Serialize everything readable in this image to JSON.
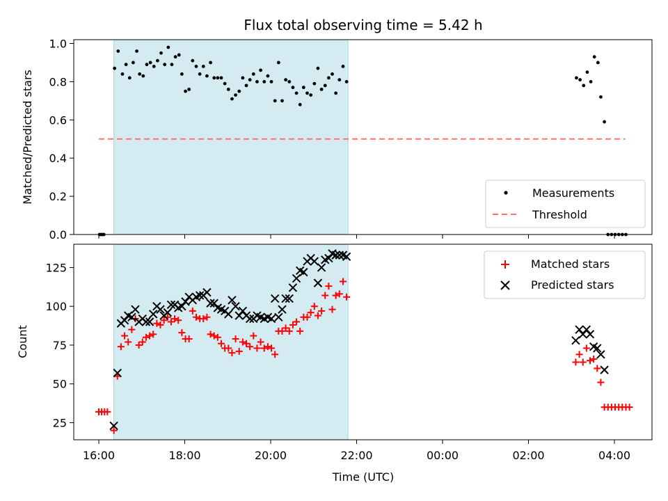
{
  "chart_data": [
    {
      "type": "scatter",
      "title": "Flux total observing time = 5.42 h",
      "ylabel": "Matched/Predicted stars",
      "ylim": [
        0,
        1.02
      ],
      "yticks": [
        "0.0",
        "0.2",
        "0.4",
        "0.6",
        "0.8",
        "1.0"
      ],
      "ytick_values": [
        0,
        0.2,
        0.4,
        0.6,
        0.8,
        1.0
      ],
      "grid": false,
      "legend_position": "bottom-right",
      "shaded_interval": {
        "start": "16:21",
        "end": "21:48",
        "color": "#d4ebf2"
      },
      "threshold": {
        "name": "Threshold",
        "value": 0.5,
        "x_start": "16:00",
        "x_end": "04:15",
        "color": "#ff7070",
        "style": "dashed"
      },
      "series": [
        {
          "name": "Measurements",
          "color": "#000000",
          "marker": "dot",
          "x": [
            "16:01",
            "16:03",
            "16:05",
            "16:07",
            "16:22",
            "16:27",
            "16:33",
            "16:38",
            "16:43",
            "16:48",
            "16:53",
            "16:57",
            "17:02",
            "17:07",
            "17:12",
            "17:17",
            "17:22",
            "17:27",
            "17:32",
            "17:37",
            "17:42",
            "17:47",
            "17:52",
            "17:56",
            "18:01",
            "18:06",
            "18:11",
            "18:16",
            "18:21",
            "18:26",
            "18:31",
            "18:36",
            "18:41",
            "18:46",
            "18:51",
            "18:56",
            "19:01",
            "19:06",
            "19:11",
            "19:16",
            "19:21",
            "19:26",
            "19:31",
            "19:36",
            "19:41",
            "19:46",
            "19:51",
            "19:56",
            "20:01",
            "20:06",
            "20:11",
            "20:16",
            "20:21",
            "20:26",
            "20:31",
            "20:36",
            "20:41",
            "20:46",
            "20:51",
            "20:56",
            "21:01",
            "21:06",
            "21:11",
            "21:16",
            "21:21",
            "21:26",
            "21:31",
            "21:36",
            "21:41",
            "21:46",
            "03:07",
            "03:12",
            "03:17",
            "03:22",
            "03:27",
            "03:32",
            "03:37",
            "03:41",
            "03:46",
            "03:51",
            "03:56",
            "04:01",
            "04:06",
            "04:11",
            "04:16"
          ],
          "y": [
            0,
            0,
            0,
            0,
            0.87,
            0.96,
            0.84,
            0.89,
            0.82,
            0.9,
            0.96,
            0.84,
            0.83,
            0.89,
            0.9,
            0.88,
            0.91,
            0.95,
            0.89,
            0.98,
            0.89,
            0.93,
            0.94,
            0.84,
            0.75,
            0.76,
            0.91,
            0.88,
            0.84,
            0.88,
            0.83,
            0.9,
            0.82,
            0.82,
            0.82,
            0.79,
            0.76,
            0.71,
            0.73,
            0.75,
            0.82,
            0.78,
            0.81,
            0.84,
            0.8,
            0.86,
            0.8,
            0.83,
            0.8,
            0.7,
            0.9,
            0.7,
            0.81,
            0.8,
            0.77,
            0.74,
            0.68,
            0.77,
            0.74,
            0.73,
            0.79,
            0.87,
            0.76,
            0.78,
            0.82,
            0.84,
            0.74,
            0.81,
            0.88,
            0.8,
            0.82,
            0.81,
            0.78,
            0.85,
            0.8,
            0.93,
            0.9,
            0.72,
            0.59,
            0,
            0,
            0,
            0,
            0,
            0
          ]
        }
      ]
    },
    {
      "type": "scatter",
      "xlabel": "Time (UTC)",
      "ylabel": "Count",
      "ylim": [
        14,
        140
      ],
      "yticks": [
        "25",
        "50",
        "75",
        "100",
        "125"
      ],
      "ytick_values": [
        25,
        50,
        75,
        100,
        125
      ],
      "x_ticks": [
        "16:00",
        "18:00",
        "20:00",
        "22:00",
        "00:00",
        "02:00",
        "04:00"
      ],
      "grid": false,
      "legend_position": "top-right",
      "shaded_interval": {
        "start": "16:21",
        "end": "21:48",
        "color": "#d4ebf2"
      },
      "series": [
        {
          "name": "Matched stars",
          "color": "#ff0000",
          "marker": "plus",
          "x": [
            "16:00",
            "16:04",
            "16:08",
            "16:12",
            "16:21",
            "16:26",
            "16:31",
            "16:36",
            "16:41",
            "16:46",
            "16:51",
            "16:56",
            "17:01",
            "17:06",
            "17:11",
            "17:16",
            "17:21",
            "17:26",
            "17:31",
            "17:36",
            "17:41",
            "17:46",
            "17:51",
            "17:56",
            "18:01",
            "18:06",
            "18:11",
            "18:16",
            "18:21",
            "18:26",
            "18:31",
            "18:36",
            "18:41",
            "18:46",
            "18:51",
            "18:56",
            "19:01",
            "19:06",
            "19:11",
            "19:16",
            "19:21",
            "19:26",
            "19:31",
            "19:36",
            "19:41",
            "19:46",
            "19:51",
            "19:56",
            "20:01",
            "20:06",
            "20:11",
            "20:16",
            "20:21",
            "20:26",
            "20:31",
            "20:36",
            "20:41",
            "20:46",
            "20:51",
            "20:56",
            "21:01",
            "21:06",
            "21:11",
            "21:16",
            "21:21",
            "21:26",
            "21:31",
            "21:36",
            "21:41",
            "21:46",
            "03:06",
            "03:11",
            "03:16",
            "03:21",
            "03:26",
            "03:31",
            "03:36",
            "03:41",
            "03:46",
            "03:51",
            "03:56",
            "04:01",
            "04:06",
            "04:11",
            "04:16",
            "04:21"
          ],
          "y": [
            32,
            32,
            32,
            32,
            20,
            55,
            74,
            81,
            77,
            85,
            92,
            75,
            77,
            80,
            81,
            82,
            89,
            88,
            91,
            93,
            90,
            92,
            91,
            83,
            79,
            79,
            97,
            93,
            92,
            92,
            93,
            82,
            81,
            80,
            76,
            73,
            73,
            70,
            79,
            71,
            77,
            76,
            74,
            81,
            73,
            77,
            73,
            74,
            73,
            69,
            84,
            84,
            86,
            84,
            88,
            90,
            84,
            93,
            93,
            96,
            100,
            94,
            97,
            107,
            113,
            98,
            107,
            108,
            116,
            106,
            64,
            69,
            64,
            73,
            65,
            66,
            60,
            51,
            35,
            35,
            35,
            35,
            35,
            35,
            35,
            35
          ]
        },
        {
          "name": "Predicted stars",
          "color": "#000000",
          "marker": "x",
          "x": [
            "16:21",
            "16:26",
            "16:31",
            "16:36",
            "16:41",
            "16:46",
            "16:51",
            "16:56",
            "17:01",
            "17:06",
            "17:11",
            "17:16",
            "17:21",
            "17:26",
            "17:31",
            "17:36",
            "17:41",
            "17:46",
            "17:51",
            "17:56",
            "18:01",
            "18:06",
            "18:11",
            "18:16",
            "18:21",
            "18:26",
            "18:31",
            "18:36",
            "18:41",
            "18:46",
            "18:51",
            "18:56",
            "19:01",
            "19:06",
            "19:11",
            "19:16",
            "19:21",
            "19:26",
            "19:31",
            "19:36",
            "19:41",
            "19:46",
            "19:51",
            "19:56",
            "20:01",
            "20:06",
            "20:11",
            "20:16",
            "20:21",
            "20:26",
            "20:31",
            "20:36",
            "20:41",
            "20:46",
            "20:51",
            "20:56",
            "21:01",
            "21:06",
            "21:11",
            "21:16",
            "21:21",
            "21:26",
            "21:31",
            "21:36",
            "21:41",
            "21:46",
            "03:06",
            "03:11",
            "03:16",
            "03:21",
            "03:26",
            "03:31",
            "03:36",
            "03:41",
            "03:46"
          ],
          "y": [
            23,
            57,
            89,
            91,
            94,
            93,
            98,
            90,
            92,
            90,
            90,
            95,
            100,
            98,
            94,
            96,
            101,
            101,
            99,
            100,
            103,
            106,
            104,
            106,
            107,
            107,
            109,
            102,
            102,
            99,
            98,
            97,
            95,
            104,
            100,
            94,
            97,
            94,
            92,
            92,
            94,
            93,
            92,
            93,
            92,
            105,
            93,
            98,
            105,
            105,
            112,
            118,
            123,
            122,
            129,
            131,
            129,
            115,
            125,
            130,
            131,
            134,
            133,
            133,
            133,
            132,
            78,
            85,
            82,
            85,
            82,
            74,
            73,
            69,
            59
          ]
        }
      ]
    }
  ]
}
